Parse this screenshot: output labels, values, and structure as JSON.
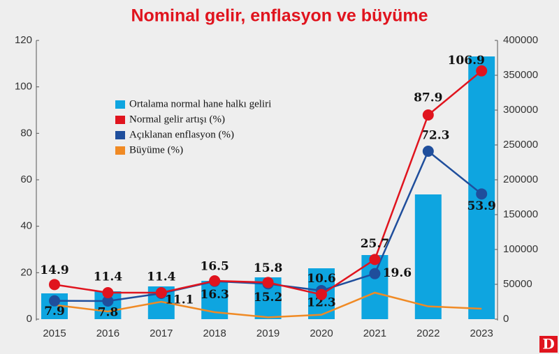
{
  "logo": "D",
  "chart_data": {
    "type": "bar-line",
    "title": "Nominal gelir, enflasyon ve büyüme",
    "categories": [
      "2015",
      "2016",
      "2017",
      "2018",
      "2019",
      "2020",
      "2021",
      "2022",
      "2023"
    ],
    "series": [
      {
        "name": "Ortalama normal hane halkı geliri",
        "kind": "bar",
        "axis": "y2",
        "color": "#0ea5e0",
        "values": [
          37000,
          40000,
          47000,
          55000,
          60000,
          73000,
          92000,
          179000,
          377000
        ]
      },
      {
        "name": "Normal gelir artışı (%)",
        "kind": "line",
        "color": "#e0141e",
        "labels": true,
        "values": [
          14.9,
          11.4,
          11.4,
          16.5,
          15.8,
          10.6,
          25.7,
          87.9,
          106.9
        ]
      },
      {
        "name": "Açıklanan enflasyon (%)",
        "kind": "line",
        "color": "#1f4e9c",
        "labels": true,
        "values": [
          7.9,
          7.8,
          11.1,
          16.3,
          15.2,
          12.3,
          19.6,
          72.3,
          53.9
        ]
      },
      {
        "name": "Büyüme (%)",
        "kind": "line",
        "color": "#f08a24",
        "labels": false,
        "values": [
          6.1,
          3.3,
          7.5,
          3.0,
          0.8,
          1.9,
          11.4,
          5.5,
          4.5
        ]
      }
    ],
    "ylim": [
      0,
      120
    ],
    "yticks": [
      0,
      20,
      40,
      60,
      80,
      100,
      120
    ],
    "y2lim": [
      0,
      400000
    ],
    "y2ticks": [
      0,
      50000,
      100000,
      150000,
      200000,
      250000,
      300000,
      350000,
      400000
    ],
    "grid": false,
    "legend": "upper left"
  }
}
